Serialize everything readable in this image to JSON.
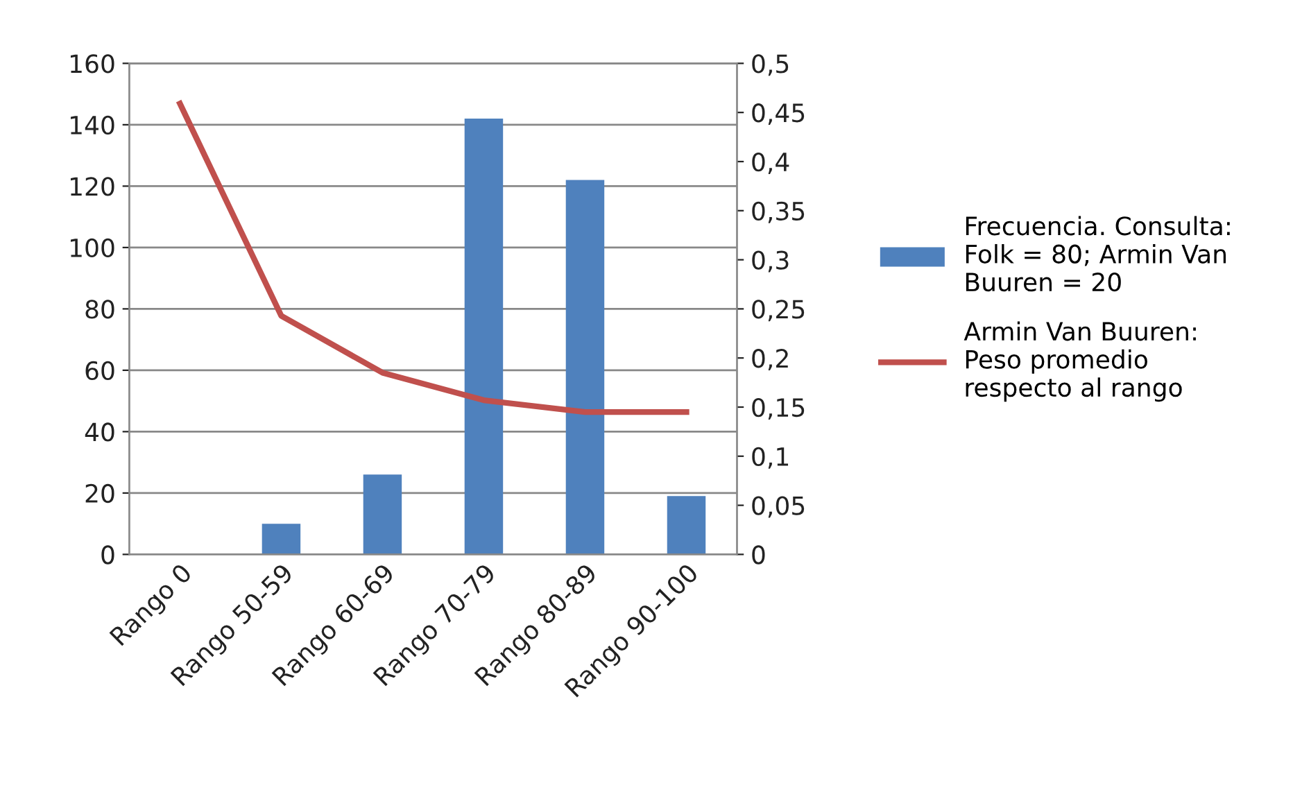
{
  "chart_data": {
    "type": "bar",
    "categories": [
      "Rango 0",
      "Rango 50-59",
      "Rango 60-69",
      "Rango 70-79",
      "Rango 80-89",
      "Rango 90-100"
    ],
    "series": [
      {
        "name": "Frecuencia. Consulta:\nFolk = 80; Armin Van\nBuuren = 20",
        "color": "#4f81bd",
        "values": [
          0,
          10,
          26,
          142,
          122,
          19
        ]
      },
      {
        "name": "Armin Van Buuren:\nPeso promedio\nrespecto al rango",
        "color": "#c0504d",
        "type": "line",
        "axis": "y2",
        "values": [
          0.459,
          0.243,
          0.185,
          0.157,
          0.145,
          0.145
        ]
      }
    ],
    "ylim": [
      0,
      160
    ],
    "yticks": [
      0,
      20,
      40,
      60,
      80,
      100,
      120,
      140,
      160
    ],
    "y2lim": [
      0,
      0.5
    ],
    "y2ticks": [
      0,
      {
        "value": 0.05,
        "label": "0,05"
      },
      {
        "value": 0.1,
        "label": "0,1"
      },
      {
        "value": 0.15,
        "label": "0,15"
      },
      {
        "value": 0.2,
        "label": "0,2"
      },
      {
        "value": 0.25,
        "label": "0,25"
      },
      {
        "value": 0.3,
        "label": "0,3"
      },
      {
        "value": 0.35,
        "label": "0,35"
      },
      {
        "value": 0.4,
        "label": "0,4"
      },
      {
        "value": 0.45,
        "label": "0,45"
      },
      {
        "value": 0.5,
        "label": "0,5"
      }
    ],
    "grid": "y",
    "legend": "right",
    "marker": "none",
    "line_style": "solid"
  }
}
